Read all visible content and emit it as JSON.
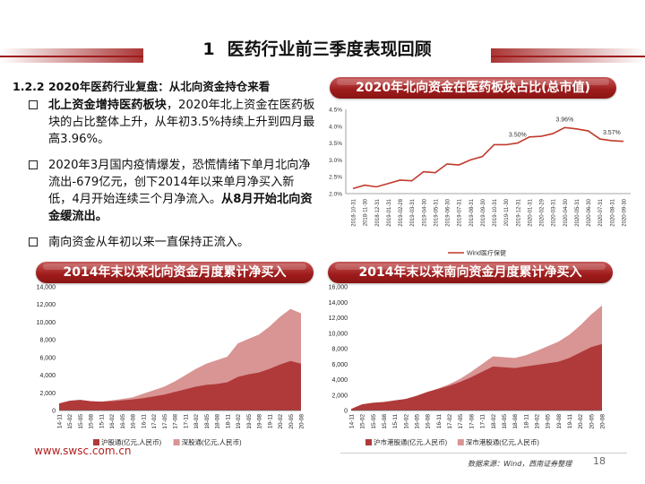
{
  "header": {
    "section_number": "1",
    "title": "医药行业前三季度表现回顾"
  },
  "subsection": "1.2.2  2020年医药行业复盘：从北向资金持仓来看",
  "bullets": [
    {
      "bold": "北上资金增持医药板块",
      "text": "，2020年北上资金在医药板块的占比整体上升，从年初3.5%持续上升到四月最高3.96%。",
      "tail_bold": ""
    },
    {
      "bold": "",
      "text": "2020年3月国内疫情爆发，恐慌情绪下单月北向净流出-679亿元，创下2014年以来单月净买入新低，4月开始连续三个月净流入。",
      "tail_bold": "从8月开始北向资金缓流出。"
    },
    {
      "bold": "",
      "text": "南向资金从年初以来一直保持正流入。",
      "tail_bold": ""
    }
  ],
  "panels": {
    "top_right_title": "2020年北向资金在医药板块占比(总市值)",
    "bottom_left_title": "2014年末以来北向资金月度累计净买入",
    "bottom_right_title": "2014年末以来南向资金月度累计净买入"
  },
  "footer": {
    "website": "www.swsc.com.cn",
    "source": "数据来源：Wind，西南证券整理",
    "page": "18"
  },
  "colors": {
    "brand": "#9e1b1b",
    "dark_series": "#b03a3a",
    "light_series": "#d99494",
    "line": "#c0392b"
  },
  "chart_data": [
    {
      "type": "line",
      "x": [
        "2018-10-31",
        "2018-11-30",
        "2018-12-31",
        "2019-01-31",
        "2019-02-28",
        "2019-03-31",
        "2019-04-30",
        "2019-05-31",
        "2019-06-30",
        "2019-07-31",
        "2019-08-31",
        "2019-09-30",
        "2019-10-31",
        "2019-11-30",
        "2019-12-31",
        "2020-01-31",
        "2020-02-29",
        "2020-03-31",
        "2020-04-30",
        "2020-05-31",
        "2020-06-30",
        "2020-07-31",
        "2020-08-31",
        "2020-09-30"
      ],
      "series": [
        {
          "name": "Wind医疗保健",
          "values": [
            2.15,
            2.25,
            2.2,
            2.3,
            2.4,
            2.38,
            2.65,
            2.62,
            2.88,
            2.85,
            3.0,
            3.1,
            3.45,
            3.45,
            3.5,
            3.68,
            3.7,
            3.78,
            3.96,
            3.92,
            3.86,
            3.62,
            3.57,
            3.55
          ]
        }
      ],
      "ylim": [
        2.0,
        4.5
      ],
      "y_ticks": [
        "2.0%",
        "2.5%",
        "3.0%",
        "3.5%",
        "4.0%",
        "4.5%"
      ],
      "annotations": [
        {
          "x": "2019-12-31",
          "label": "3.50%"
        },
        {
          "x": "2020-04-30",
          "label": "3.96%"
        },
        {
          "x": "2020-08-31",
          "label": "3.57%"
        }
      ]
    },
    {
      "type": "area",
      "categories": [
        "14-11",
        "15-02",
        "15-05",
        "15-08",
        "15-11",
        "16-02",
        "16-05",
        "16-08",
        "16-11",
        "17-02",
        "17-05",
        "17-08",
        "17-11",
        "18-02",
        "18-05",
        "18-08",
        "18-11",
        "19-02",
        "19-05",
        "19-08",
        "19-11",
        "20-02",
        "20-05",
        "20-08"
      ],
      "series": [
        {
          "name": "沪股通(亿元,人民币)",
          "values": [
            800,
            1100,
            1200,
            1050,
            1000,
            1050,
            1150,
            1250,
            1400,
            1600,
            1800,
            2100,
            2400,
            2700,
            2900,
            3000,
            3200,
            3800,
            4100,
            4300,
            4700,
            5200,
            5600,
            5300
          ]
        },
        {
          "name": "深股通(亿元,人民币)",
          "values": [
            0,
            0,
            0,
            0,
            0,
            100,
            150,
            250,
            500,
            700,
            900,
            1200,
            1600,
            2000,
            2400,
            2700,
            2900,
            3800,
            4000,
            4300,
            4800,
            5400,
            5900,
            5700
          ]
        }
      ],
      "ylim": [
        0,
        14000
      ],
      "y_ticks": [
        "0",
        "2,000",
        "4,000",
        "6,000",
        "8,000",
        "10,000",
        "12,000",
        "14,000"
      ]
    },
    {
      "type": "area",
      "categories": [
        "14-11",
        "15-02",
        "15-05",
        "15-08",
        "15-11",
        "16-02",
        "16-05",
        "16-08",
        "16-11",
        "17-02",
        "17-05",
        "17-08",
        "17-11",
        "18-02",
        "18-05",
        "18-08",
        "18-11",
        "19-02",
        "19-05",
        "19-08",
        "19-11",
        "20-02",
        "20-05",
        "20-08"
      ],
      "series": [
        {
          "name": "沪市港股通(亿元,人民币)",
          "values": [
            200,
            800,
            1000,
            1100,
            1300,
            1500,
            1900,
            2400,
            2800,
            3200,
            3700,
            4300,
            5000,
            5700,
            5600,
            5500,
            5700,
            5900,
            6100,
            6300,
            6800,
            7500,
            8200,
            8600
          ]
        },
        {
          "name": "深市港股通(亿元,人民币)",
          "values": [
            0,
            0,
            0,
            0,
            0,
            0,
            0,
            0,
            50,
            200,
            400,
            700,
            1000,
            1300,
            1300,
            1300,
            1450,
            1800,
            2200,
            2600,
            3000,
            3500,
            4200,
            5000
          ]
        }
      ],
      "ylim": [
        0,
        16000
      ],
      "y_ticks": [
        "0",
        "2,000",
        "4,000",
        "6,000",
        "8,000",
        "10,000",
        "12,000",
        "14,000",
        "16,000"
      ]
    }
  ]
}
